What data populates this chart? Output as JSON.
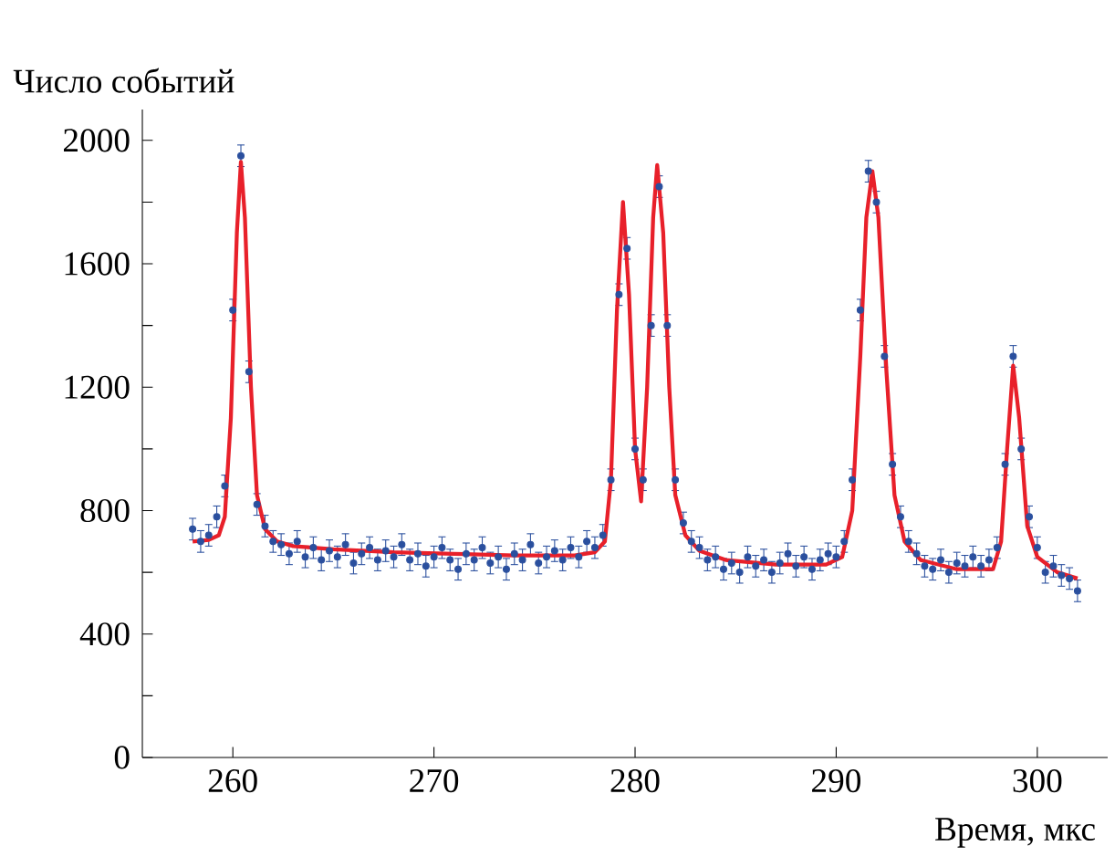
{
  "chart_data": {
    "type": "scatter",
    "xlabel": "Время, мкс",
    "ylabel": "Число событий",
    "xlim": [
      255.5,
      303.5
    ],
    "ylim": [
      0,
      2100
    ],
    "xticks": [
      260,
      270,
      280,
      290,
      300
    ],
    "yticks": [
      0,
      {
        "value": 200,
        "label": null
      },
      400,
      {
        "value": 600,
        "label": null
      },
      800,
      {
        "value": 1000,
        "label": null
      },
      1200,
      {
        "value": 1400,
        "label": null
      },
      1600,
      {
        "value": 1800,
        "label": null
      },
      2000
    ],
    "series": [
      {
        "color": "#2a4f9e",
        "marker": "circle",
        "x": [
          258.0,
          258.4,
          258.8,
          259.2,
          259.6,
          260.0,
          260.4,
          260.8,
          261.2,
          261.6,
          262.0,
          262.4,
          262.8,
          263.2,
          263.6,
          264.0,
          264.4,
          264.8,
          265.2,
          265.6,
          266.0,
          266.4,
          266.8,
          267.2,
          267.6,
          268.0,
          268.4,
          268.8,
          269.2,
          269.6,
          270.0,
          270.4,
          270.8,
          271.2,
          271.6,
          272.0,
          272.4,
          272.8,
          273.2,
          273.6,
          274.0,
          274.4,
          274.8,
          275.2,
          275.6,
          276.0,
          276.4,
          276.8,
          277.2,
          277.6,
          278.0,
          278.4,
          278.8,
          279.2,
          279.6,
          280.0,
          280.4,
          280.8,
          281.2,
          281.6,
          282.0,
          282.4,
          282.8,
          283.2,
          283.6,
          284.0,
          284.4,
          284.8,
          285.2,
          285.6,
          286.0,
          286.4,
          286.8,
          287.2,
          287.6,
          288.0,
          288.4,
          288.8,
          289.2,
          289.6,
          290.0,
          290.4,
          290.8,
          291.2,
          291.6,
          292.0,
          292.4,
          292.8,
          293.2,
          293.6,
          294.0,
          294.4,
          294.8,
          295.2,
          295.6,
          296.0,
          296.4,
          296.8,
          297.2,
          297.6,
          298.0,
          298.4,
          298.8,
          299.2,
          299.6,
          300.0,
          300.4,
          300.8,
          301.2,
          301.6,
          302.0
        ],
        "values": [
          740,
          700,
          720,
          780,
          880,
          1450,
          1950,
          1250,
          820,
          750,
          700,
          690,
          660,
          700,
          650,
          680,
          640,
          670,
          650,
          690,
          630,
          660,
          680,
          640,
          670,
          650,
          690,
          640,
          660,
          620,
          650,
          680,
          640,
          610,
          660,
          640,
          680,
          630,
          650,
          610,
          660,
          640,
          690,
          630,
          650,
          670,
          640,
          680,
          650,
          700,
          680,
          720,
          900,
          1500,
          1650,
          1000,
          900,
          1400,
          1850,
          1400,
          900,
          760,
          700,
          680,
          640,
          650,
          610,
          630,
          600,
          650,
          620,
          640,
          600,
          630,
          660,
          620,
          650,
          610,
          640,
          660,
          650,
          700,
          900,
          1450,
          1900,
          1800,
          1300,
          950,
          780,
          700,
          660,
          620,
          610,
          640,
          600,
          630,
          620,
          650,
          620,
          640,
          680,
          950,
          1300,
          1000,
          780,
          680,
          600,
          620,
          590,
          580,
          540
        ],
        "errors": [
          35,
          35,
          35,
          35,
          35,
          35,
          35,
          35,
          35,
          35,
          35,
          35,
          35,
          35,
          35,
          35,
          35,
          35,
          35,
          35,
          35,
          35,
          35,
          35,
          35,
          35,
          35,
          35,
          35,
          35,
          35,
          35,
          35,
          35,
          35,
          35,
          35,
          35,
          35,
          35,
          35,
          35,
          35,
          35,
          35,
          35,
          35,
          35,
          35,
          35,
          35,
          35,
          35,
          35,
          35,
          35,
          35,
          35,
          35,
          35,
          35,
          35,
          35,
          35,
          35,
          35,
          35,
          35,
          35,
          35,
          35,
          35,
          35,
          35,
          35,
          35,
          35,
          35,
          35,
          35,
          35,
          35,
          35,
          35,
          35,
          35,
          35,
          35,
          35,
          35,
          35,
          35,
          35,
          35,
          35,
          35,
          35,
          35,
          35,
          35,
          35,
          35,
          35,
          35,
          35,
          35,
          35,
          35,
          35,
          35,
          35
        ]
      },
      {
        "type": "line",
        "color": "#e8202a",
        "marker": "none",
        "x": [
          258,
          258.8,
          259.3,
          259.6,
          259.9,
          260.2,
          260.4,
          260.6,
          260.9,
          261.2,
          261.6,
          262.2,
          263,
          265,
          268,
          271,
          274,
          277,
          278,
          278.5,
          278.8,
          279.1,
          279.4,
          279.7,
          280.0,
          280.3,
          280.6,
          280.9,
          281.1,
          281.4,
          281.7,
          282.0,
          282.5,
          283.2,
          284.5,
          287,
          289.5,
          290.3,
          290.8,
          291.2,
          291.5,
          291.8,
          292.1,
          292.5,
          292.9,
          293.4,
          294.2,
          296,
          297.8,
          298.2,
          298.5,
          298.8,
          299.1,
          299.5,
          300,
          301,
          302
        ],
        "values": [
          700,
          705,
          720,
          780,
          1100,
          1700,
          1930,
          1750,
          1200,
          850,
          740,
          700,
          685,
          675,
          665,
          660,
          655,
          655,
          665,
          700,
          900,
          1450,
          1800,
          1500,
          1000,
          830,
          1200,
          1750,
          1920,
          1700,
          1200,
          850,
          720,
          670,
          640,
          625,
          625,
          650,
          800,
          1300,
          1750,
          1900,
          1750,
          1250,
          850,
          700,
          640,
          610,
          610,
          700,
          1000,
          1270,
          1100,
          750,
          650,
          600,
          580
        ]
      }
    ]
  }
}
